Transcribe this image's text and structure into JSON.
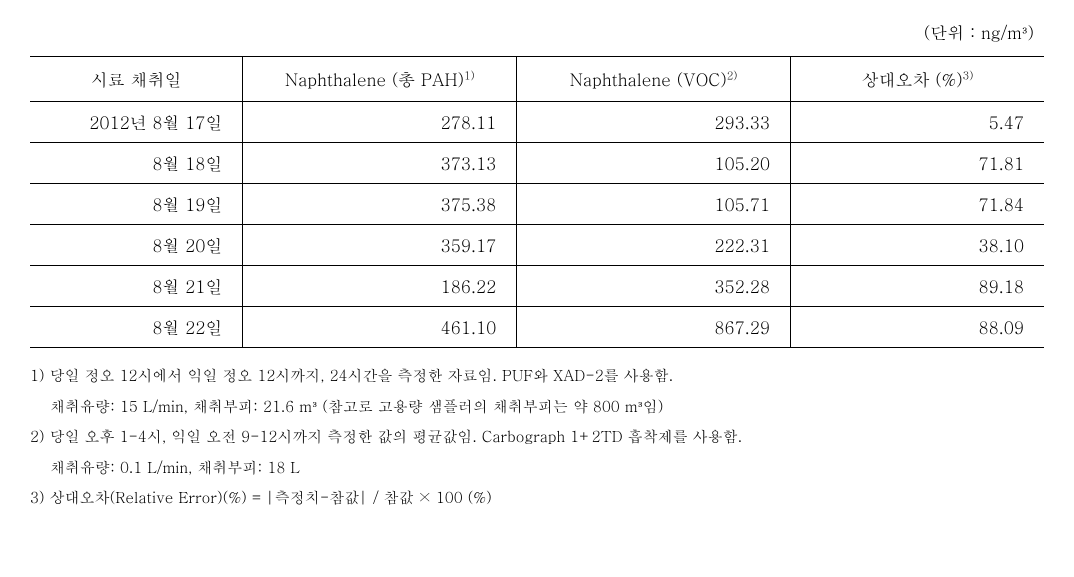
{
  "unit_label": "(단위 : ng/m³)",
  "headers": {
    "date": "시료 채취일",
    "pah_prefix": "Naphthalene (총 PAH)",
    "pah_sup": "1)",
    "voc_prefix": "Naphthalene (VOC)",
    "voc_sup": "2)",
    "err_prefix": "상대오차 (%)",
    "err_sup": "3)"
  },
  "rows": [
    {
      "date": "2012년 8월 17일",
      "pah": "278.11",
      "voc": "293.33",
      "err": "5.47"
    },
    {
      "date": "8월 18일",
      "pah": "373.13",
      "voc": "105.20",
      "err": "71.81"
    },
    {
      "date": "8월 19일",
      "pah": "375.38",
      "voc": "105.71",
      "err": "71.84"
    },
    {
      "date": "8월 20일",
      "pah": "359.17",
      "voc": "222.31",
      "err": "38.10"
    },
    {
      "date": "8월 21일",
      "pah": "186.22",
      "voc": "352.28",
      "err": "89.18"
    },
    {
      "date": "8월 22일",
      "pah": "461.10",
      "voc": "867.29",
      "err": "88.09"
    }
  ],
  "footnotes": {
    "f1a": "1) 당일 정오 12시에서 익일 정오 12시까지, 24시간을 측정한 자료임. PUF와 XAD-2를 사용함.",
    "f1b": "채취유량: 15 L/min, 채취부피: 21.6 m³ (참고로 고용량 샘플러의 채취부피는 약 800 m³임)",
    "f2a": "2) 당일 오후 1-4시, 익일 오전 9-12시까지 측정한 값의 평균값임. Carbograph 1+2TD 흡착제를 사용함.",
    "f2b": "채취유량: 0.1 L/min, 채취부피: 18 L",
    "f3": "3) 상대오차(Relative Error)(%) = |측정치-참값| / 참값 × 100 (%)"
  }
}
